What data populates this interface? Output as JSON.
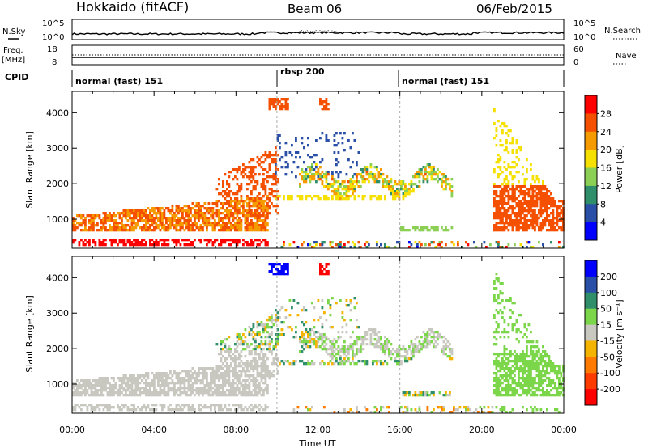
{
  "header": {
    "station": "Hokkaido (fitACF)",
    "beam": "Beam 06",
    "date": "06/Feb/2015"
  },
  "noise_panel": {
    "left_label": "N.Sky",
    "right_label": "N.Search",
    "left_top_tick": "10^5",
    "left_bottom_tick": "10^0",
    "right_top_tick": "10^5",
    "right_bottom_tick": "10^0"
  },
  "freq_panel": {
    "left_label_1": "Freq.",
    "left_label_2": "[MHz]",
    "right_label": "Nave",
    "left_ticks": [
      "18",
      "8"
    ],
    "right_ticks": [
      "60",
      "0"
    ]
  },
  "cpid_panel": {
    "label": "CPID",
    "modes": [
      {
        "name": "normal (fast) 151",
        "start_hour": 0,
        "end_hour": 10
      },
      {
        "name": "rbsp 200",
        "start_hour": 10,
        "end_hour": 16
      },
      {
        "name": "normal (fast) 151",
        "start_hour": 16,
        "end_hour": 24
      }
    ]
  },
  "chart_data": [
    {
      "type": "heatmap",
      "title": "",
      "ylabel": "Slant Range [km]",
      "xlabel": "",
      "x_range_hours": [
        0,
        24
      ],
      "ylim": [
        180,
        4600
      ],
      "y_ticks": [
        "1000",
        "2000",
        "3000",
        "4000"
      ],
      "colorbar": {
        "label": "Power [dB]",
        "ticks": [
          "4",
          "8",
          "12",
          "16",
          "20",
          "24",
          "28"
        ],
        "colors": [
          "#0000ff",
          "#2a4fa6",
          "#2f8f6a",
          "#8ccf55",
          "#f5e000",
          "#f59b00",
          "#f55000",
          "#ff0000"
        ]
      }
    },
    {
      "type": "heatmap",
      "title": "",
      "ylabel": "Slant Range [km]",
      "xlabel": "Time UT",
      "x_range_hours": [
        0,
        24
      ],
      "ylim": [
        180,
        4600
      ],
      "y_ticks": [
        "1000",
        "2000",
        "3000",
        "4000"
      ],
      "x_ticks": [
        "00:00",
        "04:00",
        "08:00",
        "12:00",
        "16:00",
        "20:00",
        "00:00"
      ],
      "colorbar": {
        "label": "Velocity [m s⁻¹]",
        "ticks": [
          "200",
          "100",
          "50",
          "15",
          "-15",
          "-50",
          "-100",
          "-200"
        ],
        "colors": [
          "#0000ff",
          "#2a4fa6",
          "#2f8f6a",
          "#7cd64a",
          "#c8c8c0",
          "#f5b400",
          "#ff7a00",
          "#ff3c00",
          "#ff0000"
        ]
      }
    }
  ],
  "colors": {
    "ground_scatter": "#c8c8c0",
    "dashed_marker": "#aaaaaa"
  }
}
